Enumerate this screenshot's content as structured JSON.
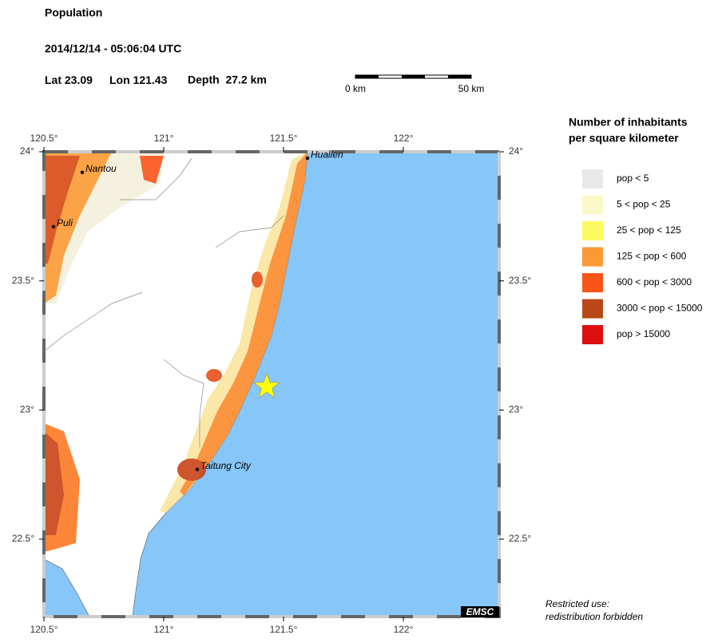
{
  "header": {
    "title": "Population",
    "datetime": "2014/12/14 - 05:06:04 UTC",
    "lat": {
      "label": "Lat",
      "value": 23.09
    },
    "lon": {
      "label": "Lon",
      "value": 121.43
    },
    "depth": "Depth  27.2 km"
  },
  "scale_bar": {
    "start": "0 km",
    "end": "50 km"
  },
  "map": {
    "lonlim": [
      120.5,
      122.4
    ],
    "latlim": [
      22.2,
      24
    ],
    "lon_ticks": [
      {
        "value": 120.5,
        "label": "120.5°"
      },
      {
        "value": 121,
        "label": "121°"
      },
      {
        "value": 121.5,
        "label": "121.5°"
      },
      {
        "value": 122,
        "label": "122°"
      }
    ],
    "lat_ticks": [
      {
        "value": 24,
        "label": "24°"
      },
      {
        "value": 23.5,
        "label": "23.5°"
      },
      {
        "value": 23,
        "label": "23°"
      },
      {
        "value": 22.5,
        "label": "22.5°"
      }
    ],
    "cities": [
      {
        "name": "Hualien",
        "lon": 121.6,
        "lat": 23.975
      },
      {
        "name": "Nantou",
        "lon": 120.66,
        "lat": 23.92
      },
      {
        "name": "Puli",
        "lon": 120.54,
        "lat": 23.71
      },
      {
        "name": "Taitung City",
        "lon": 121.14,
        "lat": 22.77
      }
    ],
    "credit": "EMSC"
  },
  "legend": {
    "title": [
      "Number of inhabitants",
      "per square kilometer"
    ],
    "items": [
      {
        "label": "pop < 5",
        "color": "#e8e8e8"
      },
      {
        "label": "5 < pop < 25",
        "color": "#fbf8c8"
      },
      {
        "label": "25 < pop < 125",
        "color": "#fbfa60"
      },
      {
        "label": "125 < pop < 600",
        "color": "#fb9a34"
      },
      {
        "label": "600 < pop < 3000",
        "color": "#fb5418"
      },
      {
        "label": "3000 < pop < 15000",
        "color": "#b84818"
      },
      {
        "label": "pop > 15000",
        "color": "#dc1010"
      }
    ]
  },
  "notice": [
    "Restricted use:",
    "redistribution forbidden"
  ]
}
